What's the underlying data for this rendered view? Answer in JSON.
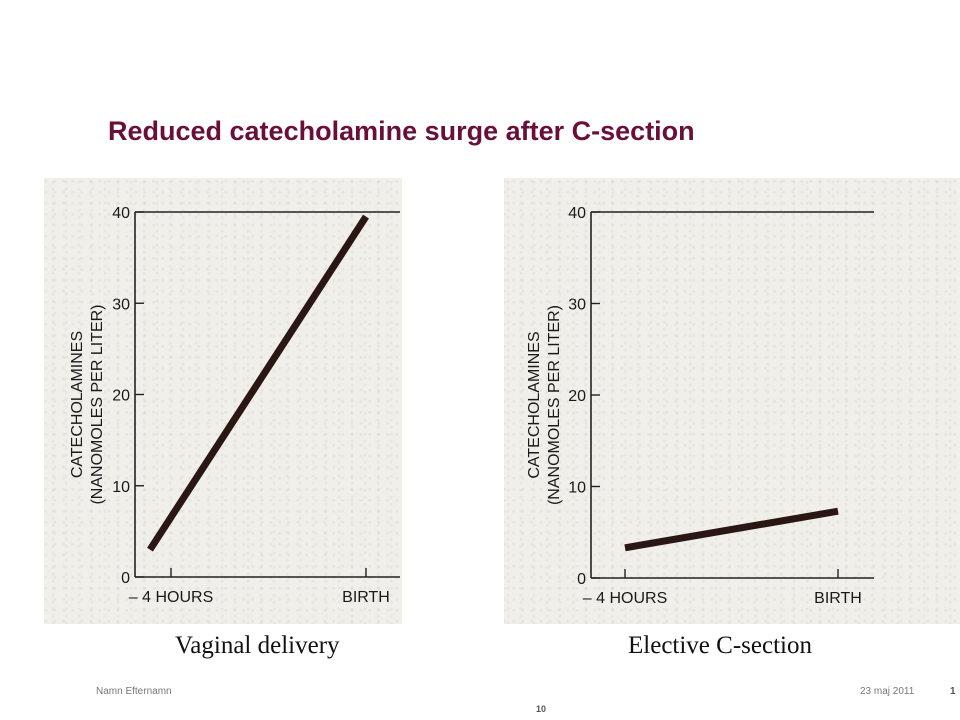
{
  "slide": {
    "title": "Reduced catecholamine surge after C-section",
    "footer_left": "Namn Efternamn",
    "footer_date": "23 maj 2011",
    "footer_page_right": "1",
    "footer_page_center": "10"
  },
  "colors": {
    "title": "#6b0f3a",
    "line": "#2a1612",
    "scan_background": "#f1efea"
  },
  "chart_data": [
    {
      "type": "line",
      "caption": "Vaginal delivery",
      "ylabel_line1": "CATECHOLAMINES",
      "ylabel_line2": "(NANOMOLES PER LITER)",
      "x_tick_labels": [
        "– 4 HOURS",
        "BIRTH"
      ],
      "y_ticks": [
        0,
        10,
        20,
        30,
        40
      ],
      "ylim": [
        0,
        40
      ],
      "series": [
        {
          "x": [
            "– 4 HOURS",
            "BIRTH"
          ],
          "values": [
            3,
            39.5
          ]
        }
      ]
    },
    {
      "type": "line",
      "caption": "Elective C-section",
      "ylabel_line1": "CATECHOLAMINES",
      "ylabel_line2": "(NANOMOLES PER LITER)",
      "x_tick_labels": [
        "– 4 HOURS",
        "BIRTH"
      ],
      "y_ticks": [
        0,
        10,
        20,
        30,
        40
      ],
      "ylim": [
        0,
        40
      ],
      "series": [
        {
          "x": [
            "– 4 HOURS",
            "BIRTH"
          ],
          "values": [
            3.3,
            7.3
          ]
        }
      ]
    }
  ]
}
